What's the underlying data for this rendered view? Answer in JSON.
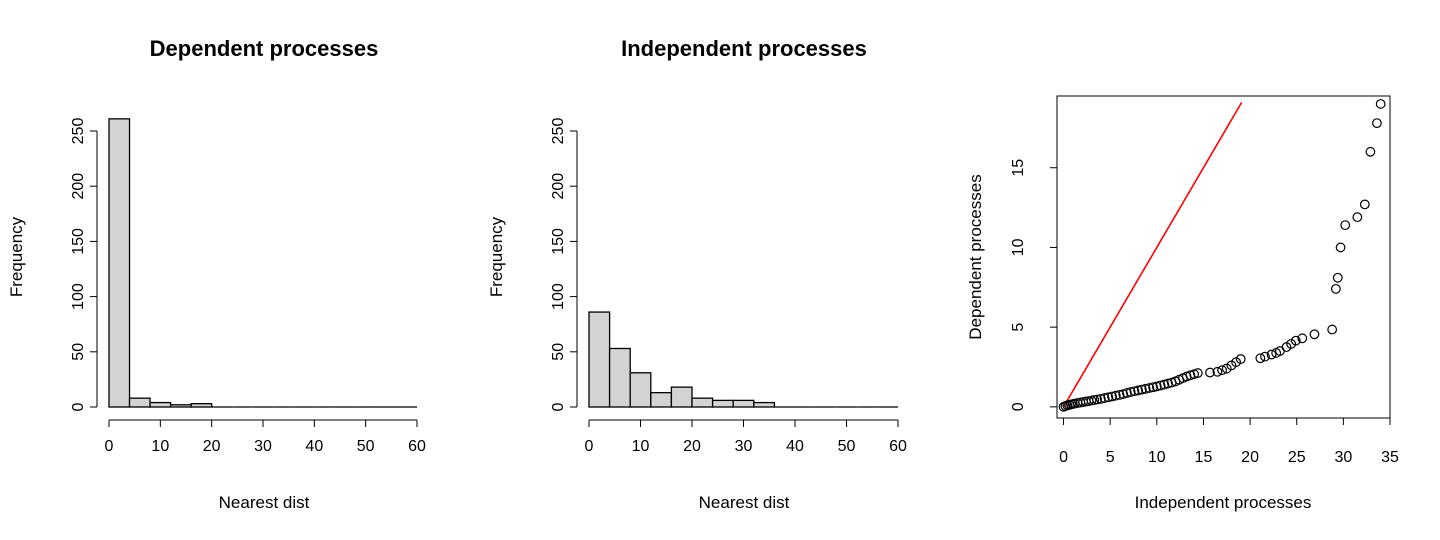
{
  "chart_data": [
    {
      "type": "bar",
      "subtype": "histogram",
      "title": "Dependent processes",
      "xlabel": "Nearest dist",
      "ylabel": "Frequency",
      "xlim": [
        0,
        60
      ],
      "ylim": [
        0,
        250
      ],
      "xticks": [
        0,
        10,
        20,
        30,
        40,
        50,
        60
      ],
      "yticks": [
        0,
        50,
        100,
        150,
        200,
        250
      ],
      "bin_edges": [
        0,
        4,
        8,
        12,
        16,
        20,
        24,
        28,
        32,
        36,
        40,
        44,
        48,
        52,
        56,
        60
      ],
      "values": [
        261,
        8,
        4,
        2,
        3,
        0,
        0,
        0,
        0,
        0,
        0,
        0,
        0,
        0,
        0
      ],
      "bar_fill": "#d3d3d3"
    },
    {
      "type": "bar",
      "subtype": "histogram",
      "title": "Independent processes",
      "xlabel": "Nearest dist",
      "ylabel": "Frequency",
      "xlim": [
        0,
        60
      ],
      "ylim": [
        0,
        250
      ],
      "xticks": [
        0,
        10,
        20,
        30,
        40,
        50,
        60
      ],
      "yticks": [
        0,
        50,
        100,
        150,
        200,
        250
      ],
      "bin_edges": [
        0,
        4,
        8,
        12,
        16,
        20,
        24,
        28,
        32,
        36,
        40,
        44,
        48,
        52,
        56,
        60
      ],
      "values": [
        86,
        53,
        31,
        13,
        18,
        8,
        6,
        6,
        4,
        0,
        0,
        0,
        0,
        0,
        0
      ],
      "bar_fill": "#d3d3d3"
    },
    {
      "type": "scatter",
      "title": "",
      "xlabel": "Independent processes",
      "ylabel": "Dependent processes",
      "xlim": [
        -0.7,
        35
      ],
      "ylim": [
        -0.7,
        19.5
      ],
      "xticks": [
        0,
        5,
        10,
        15,
        20,
        25,
        30,
        35
      ],
      "yticks": [
        0,
        5,
        10,
        15
      ],
      "point_color": "#000000",
      "reference_line": {
        "x": [
          0,
          19.1
        ],
        "y": [
          0,
          19.1
        ],
        "color": "#ff0000"
      },
      "x": [
        0.0,
        0.2,
        0.4,
        0.6,
        0.8,
        1.0,
        1.2,
        1.5,
        1.8,
        2.1,
        2.4,
        2.7,
        3.0,
        3.3,
        3.6,
        4.0,
        4.4,
        4.8,
        5.2,
        5.6,
        6.0,
        6.4,
        6.8,
        7.2,
        7.6,
        8.0,
        8.4,
        8.8,
        9.2,
        9.6,
        10.0,
        10.4,
        10.8,
        11.2,
        11.6,
        12.0,
        12.4,
        12.8,
        13.2,
        13.6,
        14.0,
        14.4,
        15.7,
        16.5,
        17.0,
        17.5,
        18.0,
        18.5,
        19.0,
        21.1,
        21.6,
        22.3,
        22.8,
        23.2,
        23.9,
        24.4,
        24.9,
        25.6,
        26.9,
        28.8,
        29.2,
        29.4,
        29.7,
        30.2,
        31.5,
        32.3,
        32.9,
        33.6,
        34.0
      ],
      "y": [
        0.0,
        0.05,
        0.1,
        0.12,
        0.15,
        0.18,
        0.2,
        0.24,
        0.27,
        0.3,
        0.33,
        0.36,
        0.4,
        0.43,
        0.46,
        0.5,
        0.55,
        0.6,
        0.65,
        0.7,
        0.75,
        0.8,
        0.87,
        0.93,
        0.98,
        1.03,
        1.08,
        1.13,
        1.18,
        1.23,
        1.28,
        1.34,
        1.4,
        1.46,
        1.52,
        1.6,
        1.7,
        1.8,
        1.9,
        1.98,
        2.05,
        2.12,
        2.15,
        2.2,
        2.3,
        2.4,
        2.6,
        2.8,
        3.0,
        3.05,
        3.15,
        3.28,
        3.38,
        3.5,
        3.75,
        3.95,
        4.15,
        4.3,
        4.55,
        4.85,
        7.4,
        8.1,
        10.0,
        11.4,
        11.9,
        12.7,
        16.0,
        17.8,
        19.0
      ]
    }
  ]
}
